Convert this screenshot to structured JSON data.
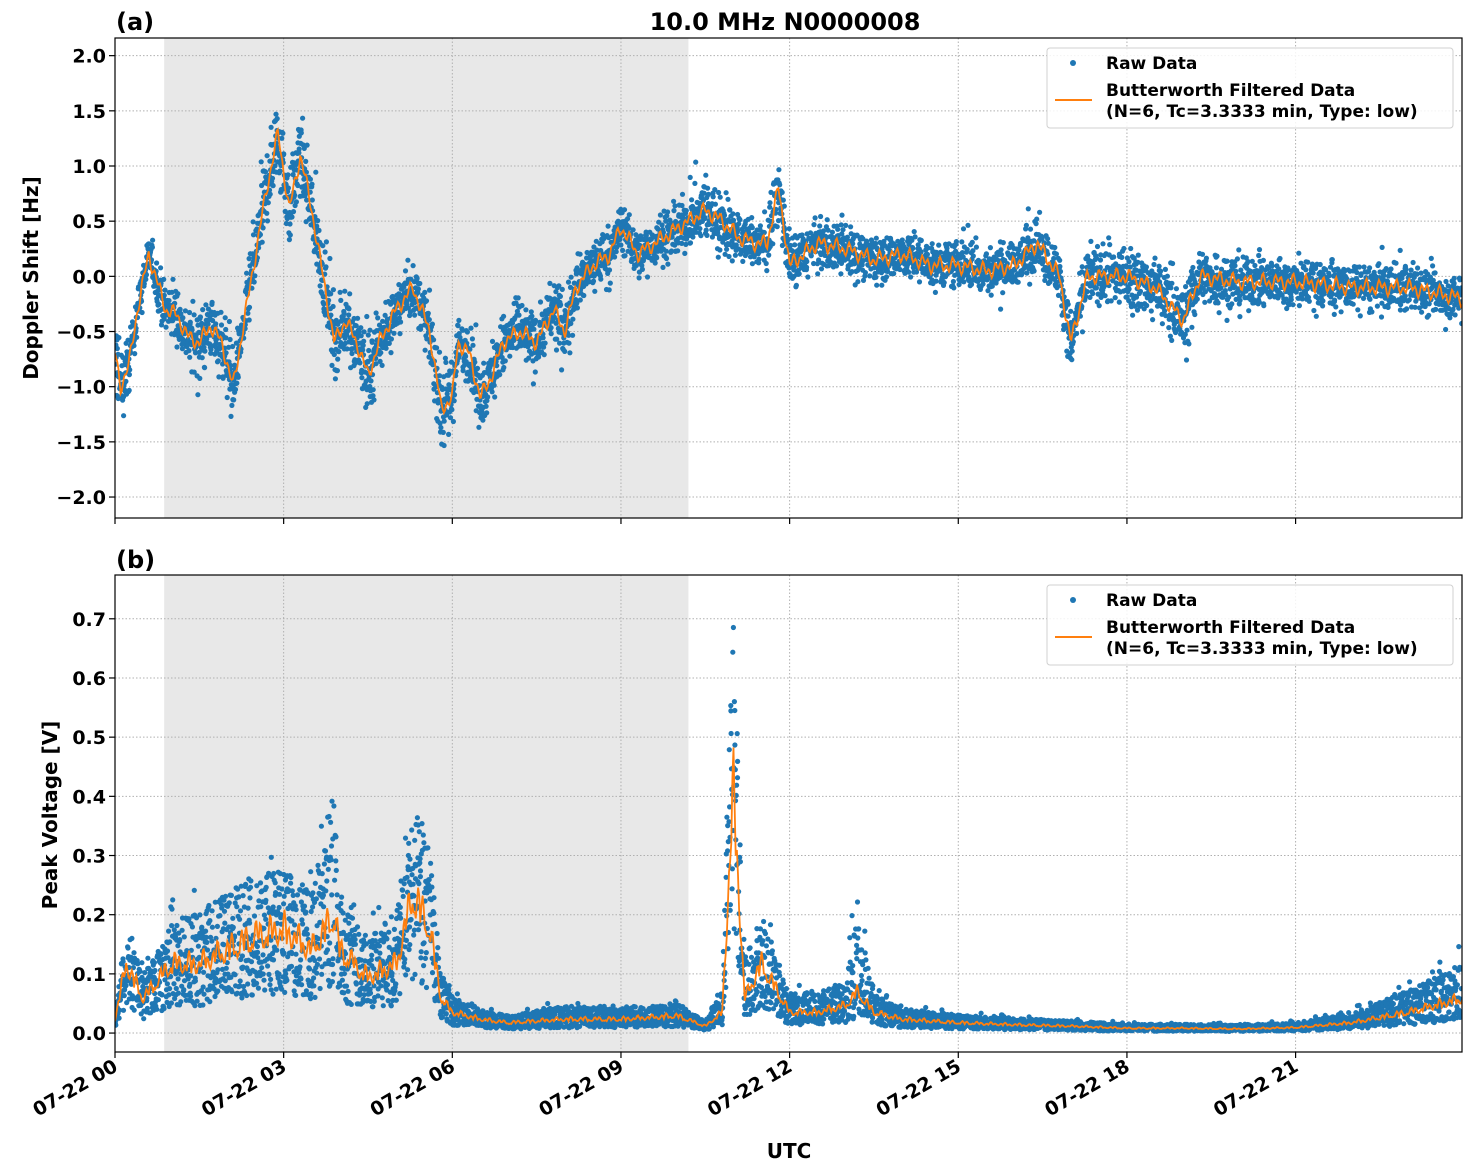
{
  "chart_data": [
    {
      "type": "scatter",
      "panel_label": "(a)",
      "title": "10.0 MHz N0000008",
      "xlabel": "",
      "ylabel": "Doppler Shift [Hz]",
      "x_unit": "hours UTC on 07-22",
      "xlim": [
        0,
        23.96
      ],
      "ylim": [
        -2.19,
        2.16
      ],
      "yticks": [
        -2.0,
        -1.5,
        -1.0,
        -0.5,
        0.0,
        0.5,
        1.0,
        1.5,
        2.0
      ],
      "ytick_labels": [
        "−2.0",
        "−1.5",
        "−1.0",
        "−0.5",
        "0.0",
        "0.5",
        "1.0",
        "1.5",
        "2.0"
      ],
      "grid": true,
      "shaded_interval_hours": [
        0.875,
        10.2
      ],
      "legend": {
        "placement": "top-right",
        "entries": [
          "Raw Data",
          "Butterworth Filtered Data\n(N=6, Tc=3.3333 min, Type: low)"
        ]
      },
      "series": [
        {
          "name": "Raw Data",
          "kind": "scatter",
          "color": "#1f77b4",
          "note_spread": "approximate half-width of raw scatter around filtered curve (Hz)",
          "x": [
            0,
            0.1,
            0.25,
            0.4,
            0.6,
            0.75,
            0.9,
            1.1,
            1.3,
            1.5,
            1.7,
            1.9,
            2.1,
            2.3,
            2.5,
            2.7,
            2.9,
            3.1,
            3.3,
            3.5,
            3.7,
            3.9,
            4.1,
            4.3,
            4.5,
            4.7,
            5.0,
            5.3,
            5.6,
            5.8,
            6.0,
            6.1,
            6.3,
            6.5,
            6.7,
            6.9,
            7.2,
            7.5,
            7.8,
            8.0,
            8.2,
            8.5,
            8.8,
            9.0,
            9.3,
            9.6,
            9.9,
            10.2,
            10.5,
            10.8,
            11.1,
            11.4,
            11.6,
            11.8,
            12.0,
            12.5,
            13,
            13.5,
            14,
            14.5,
            15,
            15.5,
            16,
            16.4,
            16.8,
            17.0,
            17.3,
            18,
            18.5,
            19,
            19.3,
            20,
            21,
            22,
            23,
            23.96
          ],
          "spread": [
            0.5,
            0.5,
            0.35,
            0.3,
            0.25,
            0.3,
            0.35,
            0.35,
            0.4,
            0.45,
            0.4,
            0.45,
            0.4,
            0.4,
            0.4,
            0.5,
            0.55,
            0.45,
            0.5,
            0.45,
            0.4,
            0.45,
            0.4,
            0.4,
            0.55,
            0.45,
            0.35,
            0.3,
            0.4,
            0.55,
            0.45,
            0.4,
            0.4,
            0.35,
            0.35,
            0.35,
            0.35,
            0.35,
            0.4,
            0.4,
            0.4,
            0.35,
            0.35,
            0.3,
            0.3,
            0.3,
            0.35,
            0.35,
            0.35,
            0.4,
            0.35,
            0.3,
            0.35,
            0.45,
            0.3,
            0.3,
            0.3,
            0.3,
            0.3,
            0.3,
            0.3,
            0.3,
            0.3,
            0.35,
            0.35,
            0.35,
            0.35,
            0.4,
            0.4,
            0.4,
            0.4,
            0.35,
            0.3,
            0.3,
            0.3,
            0.3
          ]
        },
        {
          "name": "Butterworth Filtered Data (N=6, Tc=3.3333 min, Type: low)",
          "kind": "line",
          "color": "#ff7f0e",
          "x": [
            0,
            0.1,
            0.25,
            0.4,
            0.6,
            0.75,
            0.9,
            1.1,
            1.3,
            1.5,
            1.7,
            1.9,
            2.1,
            2.3,
            2.5,
            2.7,
            2.9,
            3.1,
            3.3,
            3.5,
            3.7,
            3.9,
            4.1,
            4.3,
            4.5,
            4.7,
            5.0,
            5.3,
            5.6,
            5.8,
            6.0,
            6.1,
            6.3,
            6.5,
            6.7,
            6.9,
            7.2,
            7.5,
            7.8,
            8.0,
            8.2,
            8.5,
            8.8,
            9.0,
            9.3,
            9.6,
            9.9,
            10.2,
            10.5,
            10.8,
            11.1,
            11.4,
            11.6,
            11.8,
            12.0,
            12.5,
            13,
            13.5,
            14,
            14.5,
            15,
            15.5,
            16,
            16.4,
            16.8,
            17.0,
            17.3,
            18,
            18.5,
            19,
            19.3,
            20,
            21,
            22,
            23,
            23.96
          ],
          "y": [
            -0.7,
            -1.0,
            -0.8,
            -0.3,
            0.2,
            -0.05,
            -0.3,
            -0.35,
            -0.55,
            -0.6,
            -0.45,
            -0.6,
            -1.0,
            -0.4,
            0.2,
            0.8,
            1.3,
            0.6,
            1.1,
            0.6,
            0.0,
            -0.6,
            -0.4,
            -0.6,
            -0.9,
            -0.6,
            -0.3,
            -0.1,
            -0.5,
            -1.2,
            -1.1,
            -0.6,
            -0.7,
            -1.1,
            -0.9,
            -0.6,
            -0.5,
            -0.6,
            -0.3,
            -0.5,
            -0.1,
            0.1,
            0.2,
            0.45,
            0.2,
            0.3,
            0.4,
            0.5,
            0.6,
            0.5,
            0.35,
            0.3,
            0.3,
            0.8,
            0.1,
            0.3,
            0.25,
            0.15,
            0.2,
            0.1,
            0.1,
            0.05,
            0.1,
            0.3,
            0.0,
            -0.6,
            0.0,
            0.0,
            -0.1,
            -0.4,
            0.0,
            -0.05,
            -0.05,
            -0.1,
            -0.1,
            -0.2
          ]
        }
      ]
    },
    {
      "type": "scatter",
      "panel_label": "(b)",
      "xlabel": "UTC",
      "ylabel": "Peak Voltage [V]",
      "xlim": [
        0,
        23.96
      ],
      "ylim": [
        -0.032,
        0.774
      ],
      "yticks": [
        0.0,
        0.1,
        0.2,
        0.3,
        0.4,
        0.5,
        0.6,
        0.7
      ],
      "ytick_labels": [
        "0.0",
        "0.1",
        "0.2",
        "0.3",
        "0.4",
        "0.5",
        "0.6",
        "0.7"
      ],
      "xticks": [
        0,
        3,
        6,
        9,
        12,
        15,
        18,
        21
      ],
      "xtick_labels": [
        "07-22 00",
        "07-22 03",
        "07-22 06",
        "07-22 09",
        "07-22 12",
        "07-22 15",
        "07-22 18",
        "07-22 21"
      ],
      "grid": true,
      "shaded_interval_hours": [
        0.875,
        10.2
      ],
      "legend": {
        "placement": "top-right",
        "entries": [
          "Raw Data",
          "Butterworth Filtered Data\n(N=6, Tc=3.3333 min, Type: low)"
        ]
      },
      "series": [
        {
          "name": "Raw Data",
          "kind": "scatter",
          "color": "#1f77b4",
          "x": [
            0,
            0.2,
            0.5,
            0.7,
            1,
            1.5,
            2,
            2.5,
            3,
            3.5,
            3.9,
            4,
            4.5,
            5,
            5.3,
            5.6,
            5.8,
            6,
            6.5,
            7,
            8,
            9,
            10,
            10.5,
            10.8,
            11,
            11.2,
            11.5,
            12,
            12.5,
            13,
            13.2,
            13.5,
            14,
            15,
            16,
            17,
            18,
            19,
            20,
            21,
            22,
            23,
            23.96
          ],
          "spread": [
            0.02,
            0.06,
            0.04,
            0.06,
            0.08,
            0.1,
            0.1,
            0.1,
            0.1,
            0.1,
            0.3,
            0.1,
            0.08,
            0.1,
            0.15,
            0.15,
            0.05,
            0.03,
            0.015,
            0.012,
            0.03,
            0.02,
            0.02,
            0.01,
            0.05,
            0.35,
            0.1,
            0.1,
            0.04,
            0.05,
            0.05,
            0.2,
            0.04,
            0.02,
            0.015,
            0.012,
            0.01,
            0.008,
            0.008,
            0.008,
            0.01,
            0.02,
            0.05,
            0.08
          ]
        },
        {
          "name": "Butterworth Filtered Data (N=6, Tc=3.3333 min, Type: low)",
          "kind": "line",
          "color": "#ff7f0e",
          "x": [
            0,
            0.2,
            0.5,
            0.7,
            1,
            1.5,
            2,
            2.5,
            3,
            3.5,
            3.9,
            4,
            4.5,
            5,
            5.3,
            5.6,
            5.8,
            6,
            6.5,
            7,
            8,
            9,
            10,
            10.5,
            10.8,
            11,
            11.2,
            11.5,
            12,
            12.5,
            13,
            13.2,
            13.5,
            14,
            15,
            16,
            17,
            18,
            19,
            20,
            21,
            22,
            23,
            23.96
          ],
          "y": [
            0.02,
            0.1,
            0.05,
            0.07,
            0.1,
            0.1,
            0.12,
            0.14,
            0.15,
            0.12,
            0.17,
            0.12,
            0.08,
            0.1,
            0.2,
            0.15,
            0.05,
            0.03,
            0.02,
            0.015,
            0.02,
            0.02,
            0.025,
            0.01,
            0.03,
            0.35,
            0.05,
            0.1,
            0.03,
            0.03,
            0.04,
            0.06,
            0.03,
            0.02,
            0.015,
            0.012,
            0.01,
            0.007,
            0.007,
            0.006,
            0.008,
            0.015,
            0.03,
            0.05
          ]
        }
      ]
    }
  ],
  "colors": {
    "raw": "#1f77b4",
    "filtered": "#ff7f0e",
    "shade": "#e8e8e8",
    "grid": "#b0b0b0"
  }
}
